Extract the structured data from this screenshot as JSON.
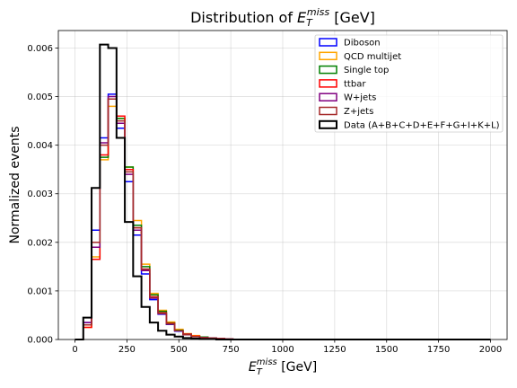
{
  "chart_data": {
    "type": "histogram-step",
    "title": "Distribution of E_T^miss [GeV]",
    "title_main": "Distribution of ",
    "title_symbol": "E",
    "title_sub": "T",
    "title_sup": "miss",
    "title_unit": " [GeV]",
    "xlabel": "E_T^miss [GeV]",
    "xlabel_symbol": "E",
    "xlabel_sub": "T",
    "xlabel_sup": "miss",
    "xlabel_unit": " [GeV]",
    "ylabel": "Normalized events",
    "xlim": [
      -80,
      2080
    ],
    "ylim": [
      0,
      0.00636
    ],
    "xticks": [
      0,
      250,
      500,
      750,
      1000,
      1250,
      1500,
      1750,
      2000
    ],
    "xtick_labels": [
      "0",
      "250",
      "500",
      "750",
      "1000",
      "1250",
      "1500",
      "1750",
      "2000"
    ],
    "yticks": [
      0,
      0.001,
      0.002,
      0.003,
      0.004,
      0.005,
      0.006
    ],
    "ytick_labels": [
      "0.000",
      "0.001",
      "0.002",
      "0.003",
      "0.004",
      "0.005",
      "0.006"
    ],
    "grid": true,
    "legend_position": "top-right",
    "bin_edges": [
      0,
      40,
      80,
      120,
      160,
      200,
      240,
      280,
      320,
      360,
      400,
      440,
      480,
      520,
      560,
      600,
      640,
      680,
      720,
      760,
      800,
      2000
    ],
    "series": [
      {
        "name": "Diboson",
        "color": "#0000ff",
        "values": [
          0.0,
          0.00035,
          0.00225,
          0.00415,
          0.00505,
          0.00435,
          0.00325,
          0.00215,
          0.00135,
          0.00082,
          0.00052,
          0.00031,
          0.00017,
          0.0001,
          6e-05,
          4e-05,
          3e-05,
          2e-05,
          1e-05,
          0.0,
          0.0
        ]
      },
      {
        "name": "QCD multijet",
        "color": "#ffa500",
        "values": [
          0.0,
          0.00025,
          0.0017,
          0.0037,
          0.0048,
          0.00455,
          0.00355,
          0.00245,
          0.00155,
          0.00095,
          0.0006,
          0.00036,
          0.00021,
          0.00012,
          8e-05,
          5e-05,
          3e-05,
          2e-05,
          1e-05,
          0.0,
          0.0
        ]
      },
      {
        "name": "Single top",
        "color": "#008000",
        "values": [
          0.0,
          0.0003,
          0.00165,
          0.00375,
          0.00495,
          0.00455,
          0.00355,
          0.00235,
          0.0015,
          0.00092,
          0.00058,
          0.00034,
          0.00019,
          0.00011,
          7e-05,
          5e-05,
          3e-05,
          2e-05,
          1e-05,
          0.0,
          0.0
        ]
      },
      {
        "name": "ttbar",
        "color": "#ff0000",
        "values": [
          0.0,
          0.00025,
          0.00165,
          0.0038,
          0.00495,
          0.0046,
          0.0035,
          0.0023,
          0.00145,
          0.00088,
          0.00055,
          0.00033,
          0.00018,
          0.00011,
          7e-05,
          4e-05,
          3e-05,
          2e-05,
          1e-05,
          0.0,
          0.0
        ]
      },
      {
        "name": "W+jets",
        "color": "#800080",
        "values": [
          0.0,
          0.00035,
          0.0019,
          0.00405,
          0.005,
          0.00445,
          0.0034,
          0.00225,
          0.00142,
          0.00085,
          0.00053,
          0.00032,
          0.00018,
          0.0001,
          6e-05,
          4e-05,
          3e-05,
          2e-05,
          1e-05,
          0.0,
          0.0
        ]
      },
      {
        "name": "Z+jets",
        "color": "#a52a2a",
        "values": [
          0.0,
          0.0003,
          0.002,
          0.004,
          0.00495,
          0.0045,
          0.00345,
          0.0023,
          0.00145,
          0.00087,
          0.00054,
          0.00032,
          0.00018,
          0.0001,
          6e-05,
          4e-05,
          3e-05,
          2e-05,
          1e-05,
          0.0,
          0.0
        ]
      },
      {
        "name": "Data (A+B+C+D+E+F+G+I+K+L)",
        "color": "#000000",
        "values": [
          0.0,
          0.00045,
          0.00312,
          0.00607,
          0.006,
          0.00415,
          0.00242,
          0.0013,
          0.00067,
          0.00035,
          0.00018,
          0.0001,
          6e-05,
          3e-05,
          2e-05,
          1e-05,
          1e-05,
          0.0,
          0.0,
          0.0,
          0.0
        ]
      }
    ]
  }
}
